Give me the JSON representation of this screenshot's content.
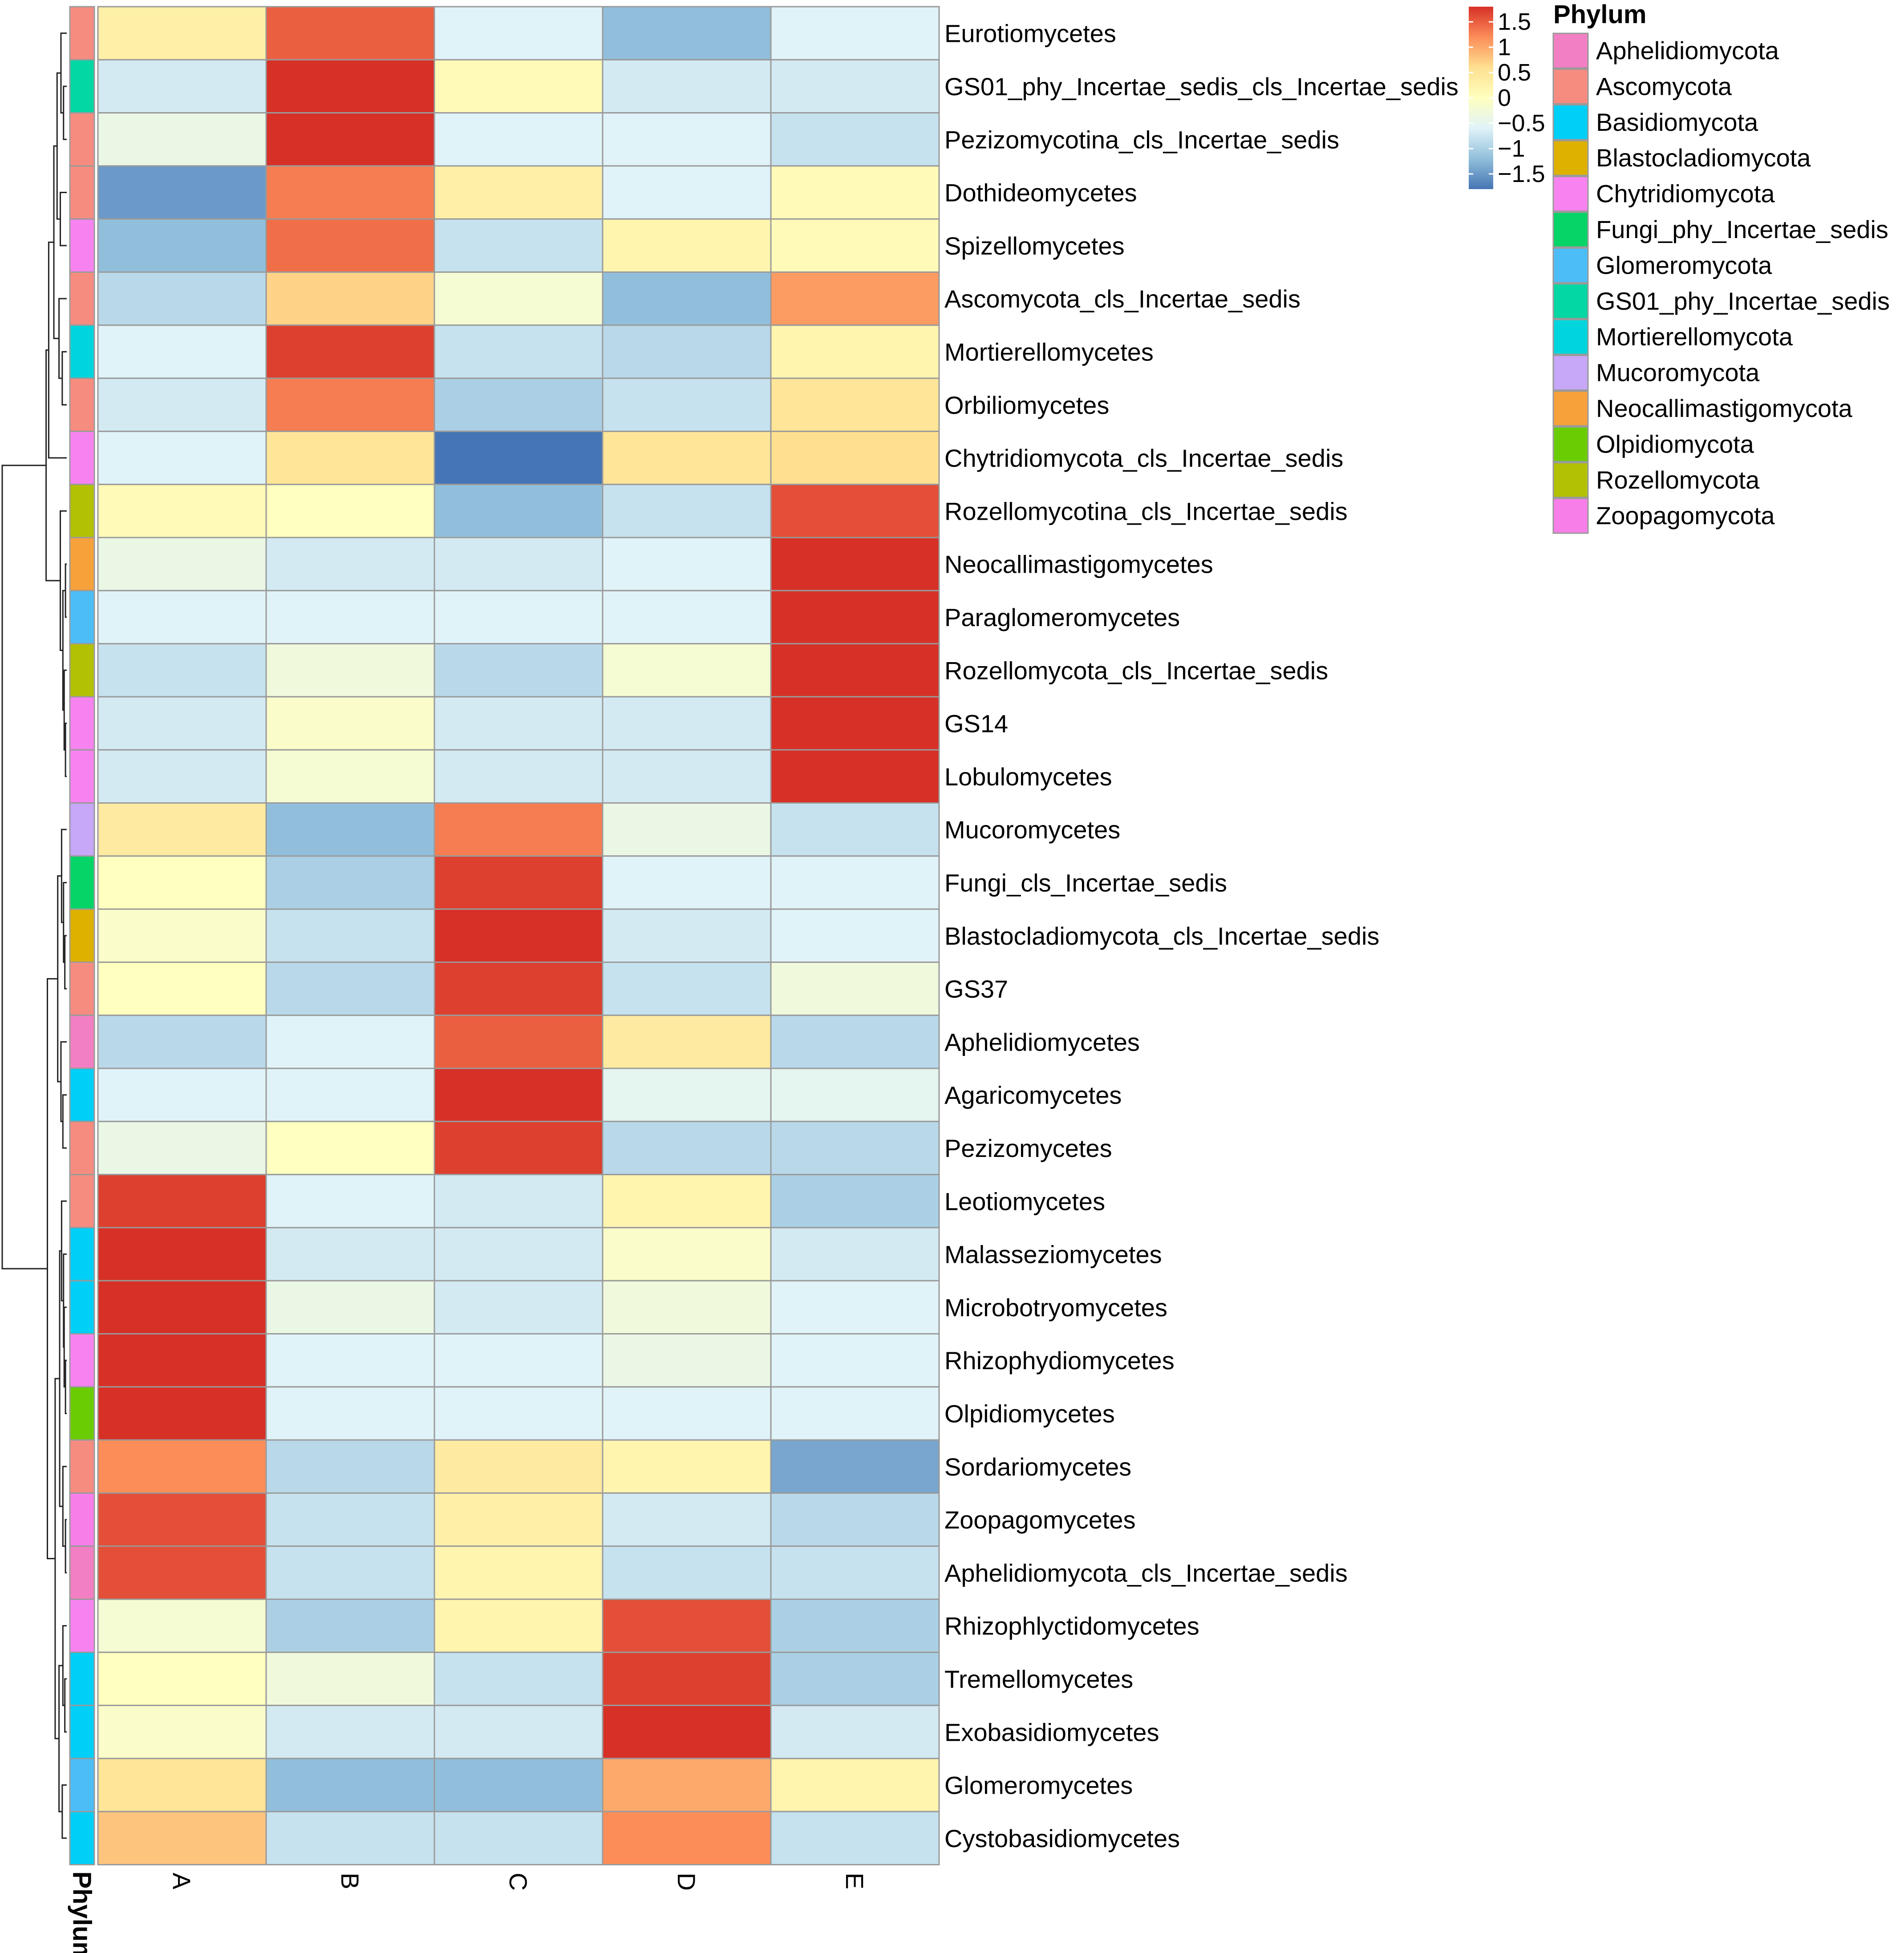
{
  "chart_data": {
    "type": "heatmap",
    "title": "",
    "xlabel": "",
    "ylabel": "",
    "columns": [
      "A",
      "B",
      "C",
      "D",
      "E"
    ],
    "rows": [
      "Eurotiomycetes",
      "GS01_phy_Incertae_sedis_cls_Incertae_sedis",
      "Pezizomycotina_cls_Incertae_sedis",
      "Dothideomycetes",
      "Spizellomycetes",
      "Ascomycota_cls_Incertae_sedis",
      "Mortierellomycetes",
      "Orbiliomycetes",
      "Chytridiomycota_cls_Incertae_sedis",
      "Rozellomycotina_cls_Incertae_sedis",
      "Neocallimastigomycetes",
      "Paraglomeromycetes",
      "Rozellomycota_cls_Incertae_sedis",
      "GS14",
      "Lobulomycetes",
      "Mucoromycetes",
      "Fungi_cls_Incertae_sedis",
      "Blastocladiomycota_cls_Incertae_sedis",
      "GS37",
      "Aphelidiomycetes",
      "Agaricomycetes",
      "Pezizomycetes",
      "Leotiomycetes",
      "Malasseziomycetes",
      "Microbotryomycetes",
      "Rhizophydiomycetes",
      "Olpidiomycetes",
      "Sordariomycetes",
      "Zoopagomycetes",
      "Aphelidiomycota_cls_Incertae_sedis",
      "Rhizophlyctidomycetes",
      "Tremellomycetes",
      "Exobasidiomycetes",
      "Glomeromycetes",
      "Cystobasidiomycetes"
    ],
    "values": [
      [
        0.3,
        1.5,
        -0.6,
        -1.2,
        -0.6
      ],
      [
        -0.7,
        1.8,
        0.1,
        -0.7,
        -0.7
      ],
      [
        -0.4,
        1.8,
        -0.6,
        -0.6,
        -0.8
      ],
      [
        -1.5,
        1.3,
        0.3,
        -0.6,
        0.1
      ],
      [
        -1.2,
        1.4,
        -0.8,
        0.2,
        0.1
      ],
      [
        -0.9,
        0.7,
        -0.2,
        -1.2,
        1.1
      ],
      [
        -0.6,
        1.7,
        -0.8,
        -0.9,
        0.2
      ],
      [
        -0.7,
        1.3,
        -1.0,
        -0.8,
        0.5
      ],
      [
        -0.6,
        0.5,
        -1.8,
        0.5,
        0.6
      ],
      [
        0.1,
        0.0,
        -1.2,
        -0.8,
        1.6
      ],
      [
        -0.4,
        -0.7,
        -0.7,
        -0.6,
        1.8
      ],
      [
        -0.6,
        -0.6,
        -0.6,
        -0.6,
        1.8
      ],
      [
        -0.8,
        -0.3,
        -0.9,
        -0.2,
        1.8
      ],
      [
        -0.7,
        -0.1,
        -0.7,
        -0.7,
        1.8
      ],
      [
        -0.7,
        -0.2,
        -0.7,
        -0.7,
        1.8
      ],
      [
        0.4,
        -1.2,
        1.3,
        -0.4,
        -0.8
      ],
      [
        0.0,
        -1.0,
        1.7,
        -0.6,
        -0.6
      ],
      [
        -0.1,
        -0.8,
        1.8,
        -0.7,
        -0.6
      ],
      [
        0.0,
        -0.9,
        1.7,
        -0.8,
        -0.3
      ],
      [
        -0.9,
        -0.6,
        1.5,
        0.4,
        -0.9
      ],
      [
        -0.6,
        -0.6,
        1.8,
        -0.5,
        -0.5
      ],
      [
        -0.4,
        0.0,
        1.7,
        -0.9,
        -0.9
      ],
      [
        1.7,
        -0.6,
        -0.7,
        0.2,
        -1.0
      ],
      [
        1.8,
        -0.7,
        -0.7,
        -0.1,
        -0.7
      ],
      [
        1.8,
        -0.4,
        -0.7,
        -0.3,
        -0.6
      ],
      [
        1.8,
        -0.6,
        -0.6,
        -0.4,
        -0.6
      ],
      [
        1.8,
        -0.6,
        -0.6,
        -0.6,
        -0.6
      ],
      [
        1.2,
        -0.9,
        0.4,
        0.2,
        -1.4
      ],
      [
        1.6,
        -0.8,
        0.3,
        -0.7,
        -0.9
      ],
      [
        1.6,
        -0.8,
        0.2,
        -0.8,
        -0.8
      ],
      [
        -0.2,
        -1.0,
        0.2,
        1.6,
        -1.0
      ],
      [
        0.0,
        -0.3,
        -0.8,
        1.7,
        -1.0
      ],
      [
        -0.1,
        -0.7,
        -0.7,
        1.8,
        -0.7
      ],
      [
        0.5,
        -1.2,
        -1.2,
        1.0,
        0.2
      ],
      [
        0.8,
        -0.8,
        -0.8,
        1.2,
        -0.8
      ]
    ],
    "row_phylum": [
      "Ascomycota",
      "GS01_phy_Incertae_sedis",
      "Ascomycota",
      "Ascomycota",
      "Chytridiomycota",
      "Ascomycota",
      "Mortierellomycota",
      "Ascomycota",
      "Chytridiomycota",
      "Rozellomycota",
      "Neocallimastigomycota",
      "Glomeromycota",
      "Rozellomycota",
      "Chytridiomycota",
      "Chytridiomycota",
      "Mucoromycota",
      "Fungi_phy_Incertae_sedis",
      "Blastocladiomycota",
      "Ascomycota",
      "Aphelidiomycota",
      "Basidiomycota",
      "Ascomycota",
      "Ascomycota",
      "Basidiomycota",
      "Basidiomycota",
      "Chytridiomycota",
      "Olpidiomycota",
      "Ascomycota",
      "Zoopagomycota",
      "Aphelidiomycota",
      "Chytridiomycota",
      "Basidiomycota",
      "Basidiomycota",
      "Glomeromycota",
      "Basidiomycota"
    ],
    "annotation_title": "Phylum",
    "legend": {
      "title": "Phylum",
      "placement": "top-right",
      "entries": [
        {
          "name": "Aphelidiomycota",
          "color": "#F27FC3"
        },
        {
          "name": "Ascomycota",
          "color": "#F68C80"
        },
        {
          "name": "Basidiomycota",
          "color": "#00CFF7"
        },
        {
          "name": "Blastocladiomycota",
          "color": "#DEB100"
        },
        {
          "name": "Chytridiomycota",
          "color": "#F783F0"
        },
        {
          "name": "Fungi_phy_Incertae_sedis",
          "color": "#05D567"
        },
        {
          "name": "Glomeromycota",
          "color": "#4DBDF8"
        },
        {
          "name": "GS01_phy_Incertae_sedis",
          "color": "#03D7A4"
        },
        {
          "name": "Mortierellomycota",
          "color": "#00D5DD"
        },
        {
          "name": "Mucoromycota",
          "color": "#C7A7F8"
        },
        {
          "name": "Neocallimastigomycota",
          "color": "#F7A13A"
        },
        {
          "name": "Olpidiomycota",
          "color": "#6ACD04"
        },
        {
          "name": "Rozellomycota",
          "color": "#B3C104"
        },
        {
          "name": "Zoopagomycota",
          "color": "#F77EE8"
        }
      ]
    },
    "colorbar": {
      "tick_labels": [
        "1.5",
        "1",
        "0.5",
        "0",
        "−0.5",
        "−1",
        "−1.5"
      ],
      "tick_values": [
        1.5,
        1,
        0.5,
        0,
        -0.5,
        -1,
        -1.5
      ],
      "range": [
        -1.8,
        1.8
      ],
      "colors": [
        "#4575B4",
        "#91BFDB",
        "#E0F3F8",
        "#FFFFBF",
        "#FEE090",
        "#FC8D59",
        "#D73027"
      ]
    },
    "grid": true,
    "row_dendrogram": true
  }
}
